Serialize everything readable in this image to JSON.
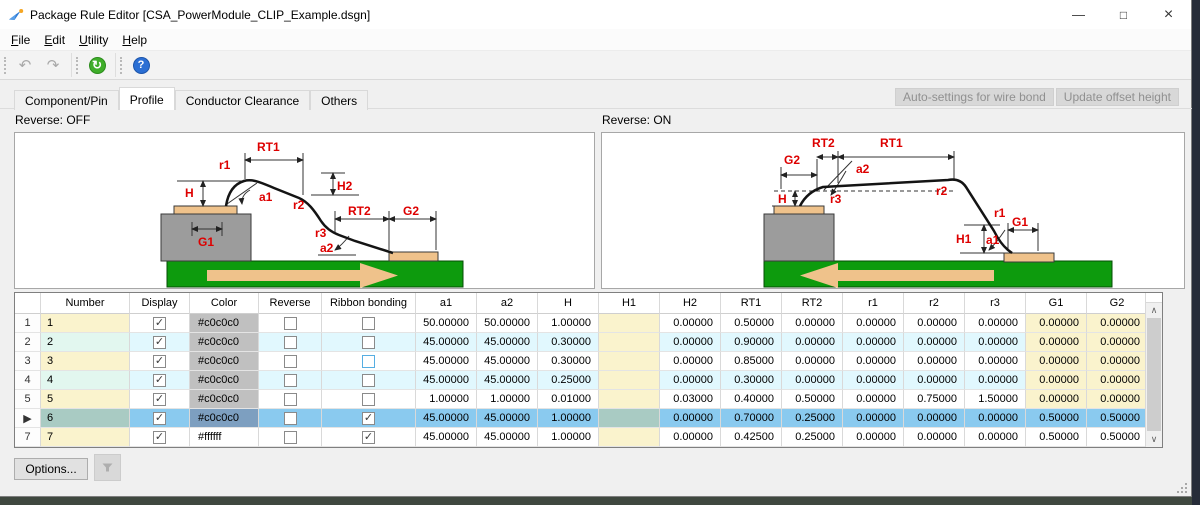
{
  "window": {
    "title": "Package Rule Editor [CSA_PowerModule_CLIP_Example.dsgn]"
  },
  "icons": {
    "undo": "↶",
    "redo": "↷",
    "refresh": "↻",
    "help": "?",
    "minimize": "—",
    "maximize": "□",
    "close": "×",
    "check": "✓",
    "current_row": "▶",
    "scroll_up": "∧",
    "scroll_down": "∨"
  },
  "menu": {
    "items": [
      "File",
      "Edit",
      "Utility",
      "Help"
    ]
  },
  "tabs": {
    "items": [
      "Component/Pin",
      "Profile",
      "Conductor Clearance",
      "Others"
    ],
    "active": "Profile"
  },
  "header_buttons": [
    "Auto-settings for wire bond",
    "Update offset height"
  ],
  "panels": {
    "off": {
      "caption": "Reverse: OFF",
      "labels": {
        "rt1": "RT1",
        "r1": "r1",
        "h2": "H2",
        "h": "H",
        "a1": "a1",
        "r2": "r2",
        "rt2": "RT2",
        "g2": "G2",
        "r3": "r3",
        "a2": "a2",
        "g1": "G1"
      }
    },
    "on": {
      "caption": "Reverse: ON",
      "labels": {
        "rt2": "RT2",
        "rt1": "RT1",
        "g2": "G2",
        "a2": "a2",
        "h": "H",
        "r3": "r3",
        "r2": "r2",
        "r1": "r1",
        "g1": "G1",
        "h1": "H1",
        "a1": "a1"
      }
    }
  },
  "table": {
    "columns": [
      "",
      "Number",
      "Display",
      "Color",
      "Reverse",
      "Ribbon bonding",
      "a1",
      "a2",
      "H",
      "H1",
      "H2",
      "RT1",
      "RT2",
      "r1",
      "r2",
      "r3",
      "G1",
      "G2"
    ],
    "selected_index": 5,
    "rows": [
      {
        "number": "1",
        "display": true,
        "color": "#c0c0c0",
        "reverse": false,
        "ribbon": false,
        "a1": "50.00000",
        "a2": "50.00000",
        "H": "1.00000",
        "H1": "",
        "H2": "0.00000",
        "RT1": "0.50000",
        "RT2": "0.00000",
        "r1": "0.00000",
        "r2": "0.00000",
        "r3": "0.00000",
        "G1": "0.00000",
        "G2": "0.00000"
      },
      {
        "number": "2",
        "display": true,
        "color": "#c0c0c0",
        "reverse": false,
        "ribbon": false,
        "a1": "45.00000",
        "a2": "45.00000",
        "H": "0.30000",
        "H1": "",
        "H2": "0.00000",
        "RT1": "0.90000",
        "RT2": "0.00000",
        "r1": "0.00000",
        "r2": "0.00000",
        "r3": "0.00000",
        "G1": "0.00000",
        "G2": "0.00000"
      },
      {
        "number": "3",
        "display": true,
        "color": "#c0c0c0",
        "reverse": false,
        "ribbon": false,
        "ribbon_focus": true,
        "a1": "45.00000",
        "a2": "45.00000",
        "H": "0.30000",
        "H1": "",
        "H2": "0.00000",
        "RT1": "0.85000",
        "RT2": "0.00000",
        "r1": "0.00000",
        "r2": "0.00000",
        "r3": "0.00000",
        "G1": "0.00000",
        "G2": "0.00000"
      },
      {
        "number": "4",
        "display": true,
        "color": "#c0c0c0",
        "reverse": false,
        "ribbon": false,
        "a1": "45.00000",
        "a2": "45.00000",
        "H": "0.25000",
        "H1": "",
        "H2": "0.00000",
        "RT1": "0.30000",
        "RT2": "0.00000",
        "r1": "0.00000",
        "r2": "0.00000",
        "r3": "0.00000",
        "G1": "0.00000",
        "G2": "0.00000"
      },
      {
        "number": "5",
        "display": true,
        "color": "#c0c0c0",
        "reverse": false,
        "ribbon": false,
        "a1": "1.00000",
        "a2": "1.00000",
        "H": "0.01000",
        "H1": "",
        "H2": "0.03000",
        "RT1": "0.40000",
        "RT2": "0.50000",
        "r1": "0.00000",
        "r2": "0.75000",
        "r3": "1.50000",
        "G1": "0.00000",
        "G2": "0.00000"
      },
      {
        "number": "6",
        "display": true,
        "color": "#c0c0c0",
        "reverse": false,
        "ribbon": true,
        "a1": "45.00000",
        "a2": "45.00000",
        "H": "1.00000",
        "H1": "",
        "H2": "0.00000",
        "RT1": "0.70000",
        "RT2": "0.25000",
        "r1": "0.00000",
        "r2": "0.00000",
        "r3": "0.00000",
        "G1": "0.50000",
        "G2": "0.50000"
      },
      {
        "number": "7",
        "display": true,
        "color": "#ffffff",
        "reverse": false,
        "ribbon": true,
        "a1": "45.00000",
        "a2": "45.00000",
        "H": "1.00000",
        "H1": "",
        "H2": "0.00000",
        "RT1": "0.42500",
        "RT2": "0.25000",
        "r1": "0.00000",
        "r2": "0.00000",
        "r3": "0.00000",
        "G1": "0.50000",
        "G2": "0.50000"
      }
    ]
  },
  "footer": {
    "options": "Options..."
  },
  "colors": {
    "selection": "#8acaef",
    "selection_input": "#a9cbc3",
    "selection_color_cell": "#7d9fc0",
    "alt_row": "#e1f8fe",
    "alt_number": "#e2f7ef",
    "editable_cell": "#faf3cd",
    "substrate_green": "#0d9b0d",
    "pad_tan": "#efc28b",
    "die_gray": "#9c9c9c",
    "dim_label_red": "#dd0000",
    "color_value_rows_1_6": "#c0c0c0",
    "color_value_row_7": "#ffffff"
  }
}
